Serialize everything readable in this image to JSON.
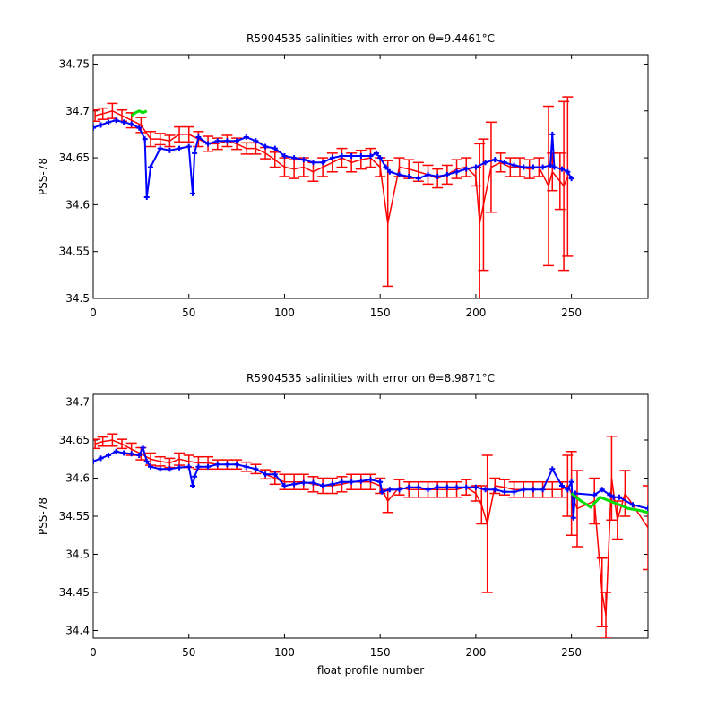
{
  "colors": {
    "error_bars": "#ff0000",
    "calibrated": "#0000ff",
    "mapped": "#00dd00",
    "axes": "#000000",
    "background": "#ffffff"
  },
  "chart_data": [
    {
      "type": "line",
      "title": "R5904535 salinities with error on θ=9.4461°C",
      "xlabel": "",
      "ylabel": "PSS-78",
      "xlim": [
        0,
        290
      ],
      "ylim": [
        34.5,
        34.76
      ],
      "xticks": [
        "0",
        "50",
        "100",
        "150",
        "200",
        "250"
      ],
      "yticks": [
        "34.5",
        "34.55",
        "34.6",
        "34.65",
        "34.7",
        "34.75"
      ],
      "grid": false,
      "series": [
        {
          "role": "error-bars",
          "color": "#ff0000",
          "x": [
            1,
            5,
            10,
            15,
            20,
            25,
            30,
            35,
            40,
            45,
            50,
            55,
            60,
            65,
            70,
            75,
            80,
            85,
            90,
            95,
            100,
            105,
            110,
            115,
            120,
            125,
            130,
            135,
            140,
            145,
            150,
            154,
            160,
            165,
            170,
            175,
            180,
            185,
            190,
            195,
            200,
            202,
            204,
            208,
            213,
            218,
            223,
            228,
            233,
            238,
            240,
            244,
            246,
            248
          ],
          "y": [
            34.695,
            34.697,
            34.7,
            34.695,
            34.69,
            34.685,
            34.67,
            34.67,
            34.668,
            34.675,
            34.675,
            34.67,
            34.665,
            34.665,
            34.668,
            34.665,
            34.66,
            34.66,
            34.655,
            34.648,
            34.64,
            34.638,
            34.64,
            34.635,
            34.64,
            34.645,
            34.65,
            34.645,
            34.648,
            34.65,
            34.64,
            34.58,
            34.64,
            34.638,
            34.635,
            34.632,
            34.628,
            34.632,
            34.638,
            34.64,
            34.63,
            34.58,
            34.6,
            34.64,
            34.645,
            34.64,
            34.64,
            34.638,
            34.64,
            34.62,
            34.635,
            34.625,
            34.62,
            34.63
          ],
          "err": [
            0.006,
            0.006,
            0.008,
            0.006,
            0.008,
            0.008,
            0.008,
            0.006,
            0.006,
            0.008,
            0.008,
            0.008,
            0.008,
            0.006,
            0.006,
            0.006,
            0.006,
            0.006,
            0.006,
            0.008,
            0.01,
            0.01,
            0.01,
            0.01,
            0.01,
            0.01,
            0.01,
            0.01,
            0.01,
            0.01,
            0.01,
            0.067,
            0.01,
            0.01,
            0.01,
            0.01,
            0.01,
            0.01,
            0.01,
            0.01,
            0.01,
            0.085,
            0.07,
            0.048,
            0.01,
            0.01,
            0.01,
            0.01,
            0.01,
            0.085,
            0.02,
            0.03,
            0.09,
            0.085
          ]
        },
        {
          "role": "calibrated",
          "color": "#0000ff",
          "x": [
            0,
            4,
            8,
            12,
            16,
            20,
            24,
            27,
            28,
            30,
            35,
            40,
            45,
            50,
            52,
            53,
            55,
            60,
            65,
            70,
            75,
            80,
            85,
            90,
            95,
            100,
            105,
            110,
            115,
            120,
            125,
            130,
            135,
            140,
            145,
            148,
            150,
            153,
            155,
            160,
            165,
            170,
            175,
            180,
            185,
            190,
            195,
            200,
            205,
            210,
            215,
            220,
            225,
            230,
            235,
            239,
            240,
            241,
            245,
            248,
            250
          ],
          "y": [
            34.682,
            34.685,
            34.688,
            34.69,
            34.688,
            34.686,
            34.682,
            34.67,
            34.608,
            34.64,
            34.66,
            34.658,
            34.66,
            34.662,
            34.612,
            34.655,
            34.672,
            34.665,
            34.668,
            34.668,
            34.668,
            34.672,
            34.668,
            34.662,
            34.66,
            34.652,
            34.65,
            34.648,
            34.645,
            34.645,
            34.65,
            34.652,
            34.652,
            34.652,
            34.652,
            34.655,
            34.65,
            34.64,
            34.635,
            34.632,
            34.63,
            34.628,
            34.632,
            34.63,
            34.632,
            34.635,
            34.638,
            34.64,
            34.645,
            34.648,
            34.645,
            34.642,
            34.64,
            34.64,
            34.64,
            34.642,
            34.675,
            34.64,
            34.638,
            34.635,
            34.628
          ]
        },
        {
          "role": "mapped",
          "color": "#00dd00",
          "x": [
            20,
            22,
            24,
            26,
            28
          ],
          "y": [
            34.695,
            34.698,
            34.7,
            34.698,
            34.7
          ]
        }
      ]
    },
    {
      "type": "line",
      "title": "R5904535 salinities with error on θ=8.9871°C",
      "xlabel": "float profile number",
      "ylabel": "PSS-78",
      "xlim": [
        0,
        290
      ],
      "ylim": [
        34.39,
        34.71
      ],
      "xticks": [
        "0",
        "50",
        "100",
        "150",
        "200",
        "250"
      ],
      "yticks": [
        "34.4",
        "34.45",
        "34.5",
        "34.55",
        "34.6",
        "34.65",
        "34.7"
      ],
      "grid": false,
      "series": [
        {
          "role": "error-bars",
          "color": "#ff0000",
          "x": [
            1,
            5,
            10,
            15,
            20,
            25,
            30,
            35,
            40,
            45,
            50,
            55,
            60,
            65,
            70,
            75,
            80,
            85,
            90,
            95,
            100,
            105,
            110,
            115,
            120,
            125,
            130,
            135,
            140,
            145,
            150,
            154,
            160,
            165,
            170,
            175,
            180,
            185,
            190,
            195,
            200,
            203,
            206,
            210,
            215,
            220,
            225,
            230,
            235,
            240,
            245,
            248,
            250,
            253,
            262,
            266,
            268,
            271,
            274,
            278,
            290
          ],
          "y": [
            34.645,
            34.648,
            34.65,
            34.645,
            34.638,
            34.632,
            34.625,
            34.622,
            34.62,
            34.625,
            34.622,
            34.62,
            34.62,
            34.618,
            34.618,
            34.618,
            34.615,
            34.612,
            34.605,
            34.6,
            34.595,
            34.595,
            34.595,
            34.592,
            34.59,
            34.59,
            34.592,
            34.595,
            34.595,
            34.595,
            34.59,
            34.57,
            34.588,
            34.585,
            34.585,
            34.585,
            34.585,
            34.585,
            34.585,
            34.588,
            34.58,
            34.565,
            34.54,
            34.59,
            34.588,
            34.585,
            34.585,
            34.585,
            34.585,
            34.585,
            34.585,
            34.59,
            34.58,
            34.56,
            34.57,
            34.45,
            34.42,
            34.6,
            34.545,
            34.58,
            34.535
          ],
          "err": [
            0.006,
            0.006,
            0.008,
            0.006,
            0.008,
            0.008,
            0.008,
            0.006,
            0.006,
            0.008,
            0.008,
            0.008,
            0.008,
            0.006,
            0.006,
            0.006,
            0.006,
            0.006,
            0.006,
            0.008,
            0.01,
            0.01,
            0.01,
            0.01,
            0.01,
            0.01,
            0.01,
            0.01,
            0.01,
            0.01,
            0.01,
            0.015,
            0.01,
            0.01,
            0.01,
            0.01,
            0.01,
            0.01,
            0.01,
            0.01,
            0.01,
            0.025,
            0.09,
            0.01,
            0.01,
            0.01,
            0.01,
            0.01,
            0.01,
            0.01,
            0.01,
            0.04,
            0.055,
            0.05,
            0.03,
            0.045,
            0.03,
            0.055,
            0.025,
            0.03,
            0.055
          ]
        },
        {
          "role": "calibrated",
          "color": "#0000ff",
          "x": [
            0,
            4,
            8,
            12,
            16,
            20,
            24,
            26,
            28,
            30,
            35,
            40,
            45,
            50,
            52,
            53,
            55,
            60,
            65,
            70,
            75,
            80,
            85,
            90,
            95,
            100,
            105,
            110,
            115,
            120,
            125,
            130,
            135,
            140,
            145,
            150,
            151,
            155,
            160,
            165,
            170,
            175,
            180,
            185,
            190,
            195,
            200,
            205,
            210,
            215,
            220,
            225,
            230,
            235,
            240,
            245,
            248,
            250,
            251,
            252,
            262,
            266,
            270,
            272,
            275,
            282,
            290
          ],
          "y": [
            34.622,
            34.626,
            34.63,
            34.635,
            34.633,
            34.632,
            34.63,
            34.64,
            34.622,
            34.615,
            34.612,
            34.612,
            34.614,
            34.615,
            34.59,
            34.602,
            34.615,
            34.615,
            34.618,
            34.618,
            34.618,
            34.615,
            34.612,
            34.605,
            34.605,
            34.59,
            34.592,
            34.594,
            34.594,
            34.59,
            34.592,
            34.595,
            34.595,
            34.596,
            34.598,
            34.595,
            34.582,
            34.585,
            34.585,
            34.588,
            34.588,
            34.585,
            34.588,
            34.588,
            34.588,
            34.588,
            34.588,
            34.585,
            34.585,
            34.582,
            34.582,
            34.585,
            34.585,
            34.585,
            34.612,
            34.59,
            34.585,
            34.595,
            34.548,
            34.58,
            34.578,
            34.585,
            34.578,
            34.575,
            34.575,
            34.565,
            34.56
          ]
        },
        {
          "role": "mapped",
          "color": "#00dd00",
          "x": [
            250,
            255,
            260,
            265,
            270,
            275,
            280,
            285,
            290
          ],
          "y": [
            34.58,
            34.57,
            34.562,
            34.575,
            34.57,
            34.565,
            34.56,
            34.558,
            34.555
          ]
        }
      ]
    }
  ]
}
